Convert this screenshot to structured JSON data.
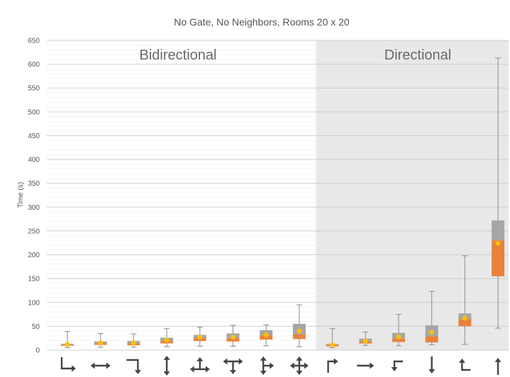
{
  "chart_data": {
    "type": "box",
    "title": "No Gate, No Neighbors, Rooms 20 x 20",
    "ylabel": "Time (s)",
    "xlabel": "",
    "ylim": [
      0,
      650
    ],
    "yticks": [
      "0",
      "50",
      "100",
      "150",
      "200",
      "250",
      "300",
      "350",
      "400",
      "450",
      "500",
      "550",
      "600",
      "650"
    ],
    "grid": true,
    "regions": [
      {
        "label": "Bidirectional",
        "from_category": 0,
        "to_category": 7,
        "background": "#ffffff"
      },
      {
        "label": "Directional",
        "from_category": 8,
        "to_category": 13,
        "background": "#e8e8e8"
      }
    ],
    "colors": {
      "lower_box": "#e8823c",
      "upper_box": "#a6a6a6",
      "mean_marker": "#ffc000",
      "whisker": "#8c8c8c",
      "grid": "#d9d9d9"
    },
    "categories": [
      {
        "icon": "turn-down-then-right-arrow-icon",
        "min": 5,
        "q1": 9,
        "median": 11,
        "q3": 13,
        "max": 39,
        "mean": 12
      },
      {
        "icon": "horizontal-double-arrow-icon",
        "min": 6,
        "q1": 11,
        "median": 14,
        "q3": 18,
        "max": 35,
        "mean": 15
      },
      {
        "icon": "turn-right-then-down-arrow-icon",
        "min": 6,
        "q1": 10,
        "median": 14,
        "q3": 19,
        "max": 34,
        "mean": 15
      },
      {
        "icon": "vertical-double-arrow-icon",
        "min": 7,
        "q1": 14,
        "median": 19,
        "q3": 26,
        "max": 45,
        "mean": 21
      },
      {
        "icon": "t-junction-up-arrow-icon",
        "min": 8,
        "q1": 19,
        "median": 25,
        "q3": 32,
        "max": 48,
        "mean": 27
      },
      {
        "icon": "t-junction-down-arrow-icon",
        "min": 8,
        "q1": 18,
        "median": 25,
        "q3": 35,
        "max": 52,
        "mean": 27
      },
      {
        "icon": "t-junction-right-arrow-icon",
        "min": 9,
        "q1": 22,
        "median": 31,
        "q3": 42,
        "max": 53,
        "mean": 32
      },
      {
        "icon": "four-way-cross-arrow-icon",
        "min": 7,
        "q1": 23,
        "median": 33,
        "q3": 55,
        "max": 95,
        "mean": 40
      },
      {
        "icon": "corner-up-right-arrow-icon",
        "min": 5,
        "q1": 8,
        "median": 11,
        "q3": 13,
        "max": 45,
        "mean": 11
      },
      {
        "icon": "right-arrow-icon",
        "min": 10,
        "q1": 14,
        "median": 18,
        "q3": 24,
        "max": 38,
        "mean": 19
      },
      {
        "icon": "corner-down-left-arrow-icon",
        "min": 9,
        "q1": 17,
        "median": 24,
        "q3": 36,
        "max": 75,
        "mean": 28
      },
      {
        "icon": "down-arrow-icon",
        "min": 11,
        "q1": 16,
        "median": 29,
        "q3": 52,
        "max": 123,
        "mean": 37
      },
      {
        "icon": "corner-up-left-arrow-icon",
        "min": 12,
        "q1": 50,
        "median": 65,
        "q3": 77,
        "max": 198,
        "mean": 67
      },
      {
        "icon": "up-arrow-icon",
        "min": 46,
        "q1": 155,
        "median": 230,
        "q3": 272,
        "max": 613,
        "mean": 224
      }
    ]
  }
}
